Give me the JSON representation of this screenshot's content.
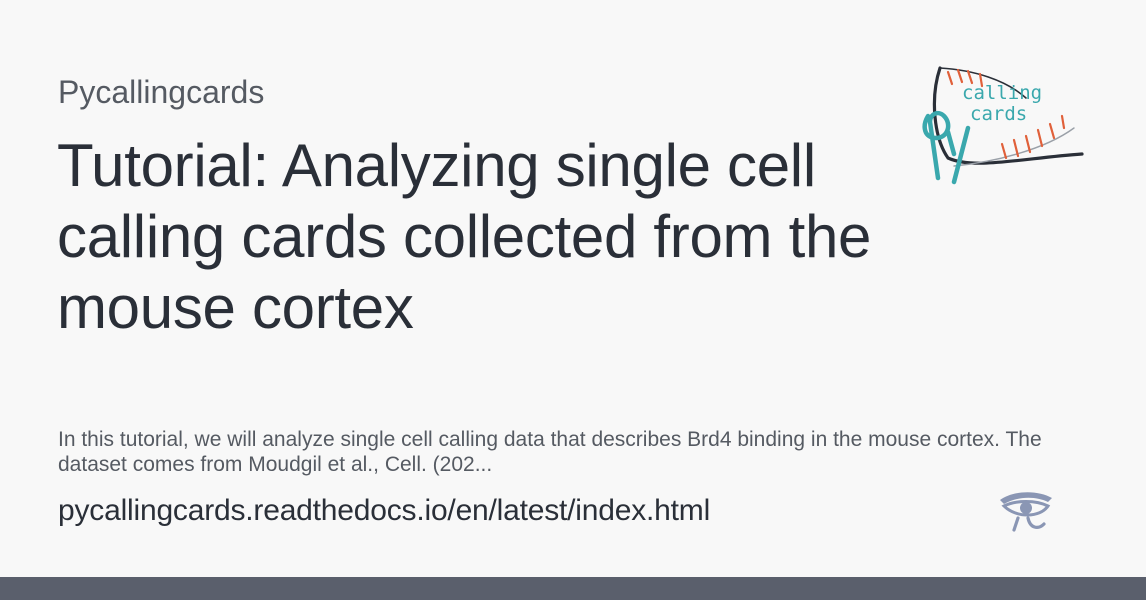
{
  "card": {
    "site_name": "Pycallingcards",
    "title": "Tutorial: Analyzing single cell calling cards collected from the mouse cortex",
    "description": "In this tutorial, we will analyze single cell calling data that describes Brd4 binding in the mouse cortex. The dataset comes from Moudgil et al., Cell. (202...",
    "url": "pycallingcards.readthedocs.io/en/latest/index.html"
  },
  "logo": {
    "word1": "calling",
    "word2": "cards",
    "icon": "calling-cards-logo"
  },
  "footer_icon": "readthedocs-eye-icon",
  "colors": {
    "background": "#f8f8f8",
    "title": "#2a2f38",
    "muted": "#555a62",
    "bar": "#5a5f6c",
    "logo_teal": "#3aa8ad",
    "logo_orange": "#e0603a",
    "eye": "#8a96b4"
  }
}
